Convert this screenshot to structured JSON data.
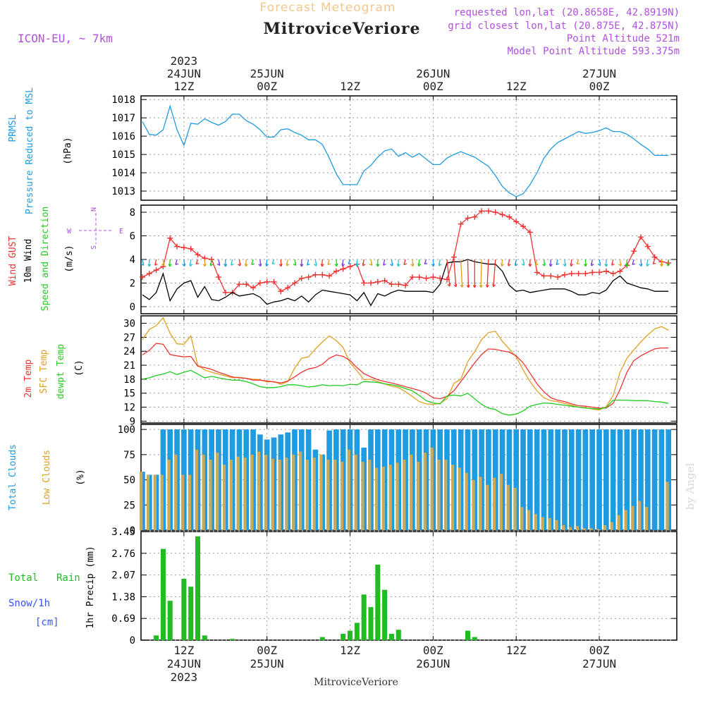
{
  "header": {
    "subtitle": "Forecast Meteogram",
    "location": "MitroviceVeriore",
    "model": "ICON-EU, ~ 7km",
    "requested": "requested lon,lat (20.8658E, 42.8919N)",
    "closest": "grid closest lon,lat (20.875E, 42.875N)",
    "altitude": "Point Altitude 521m",
    "model_altitude": "Model Point Altitude 593.375m",
    "watermark": "by Angel"
  },
  "time_axis": {
    "top_labels": [
      {
        "day": "24JUN",
        "hour": "12Z",
        "year": "2023"
      },
      {
        "day": "25JUN",
        "hour": "00Z"
      },
      {
        "day": "",
        "hour": "12Z"
      },
      {
        "day": "26JUN",
        "hour": "00Z"
      },
      {
        "day": "",
        "hour": "12Z"
      },
      {
        "day": "27JUN",
        "hour": "00Z"
      }
    ],
    "bottom_hours": [
      "12Z",
      "00Z",
      "12Z",
      "00Z",
      "12Z",
      "00Z"
    ],
    "bottom_days": [
      "24JUN",
      "25JUN",
      "26JUN",
      "27JUN"
    ],
    "bottom_year": "2023",
    "bottom_title": "MitroviceVeriore",
    "tick_hours": [
      12,
      24,
      36,
      48,
      60,
      72
    ]
  },
  "panels": {
    "pressure": {
      "label1": "PRMSL",
      "label2": "Pressure Reduced to MSL",
      "unit": "(hPa)"
    },
    "wind": {
      "label_gust": "Wind GUST",
      "label_wind": "10m Wind",
      "label_dir": "Speed and Direction",
      "unit": "(m/s)",
      "compass_n": "N",
      "compass_s": "S",
      "compass_w": "W",
      "compass_e": "E"
    },
    "temp": {
      "label1": "2m Temp",
      "label2": "SFC Temp",
      "label3": "dewpt Temp",
      "unit": "(C)"
    },
    "clouds": {
      "label1": "Total Clouds",
      "label2": "Low Clouds",
      "unit": "(%)"
    },
    "precip": {
      "label1": "Total",
      "label2": "Rain",
      "label3": "Snow/1h",
      "label4": "[cm]",
      "unit": "1hr Precip (mm)"
    }
  },
  "colors": {
    "pressure": "#1f9be0",
    "gust": "#ee3333",
    "wind": "#000000",
    "temp2m": "#ee3333",
    "sfc": "#e0a020",
    "dew": "#22cc22",
    "total_clouds": "#1f9be0",
    "low_clouds": "#c8aa5a",
    "precip": "#22bb22",
    "snow_label": "#3355ee",
    "meta": "#b050e0",
    "forecast_title": "#f0c890"
  },
  "chart_data": [
    {
      "type": "line",
      "title": "PRMSL Pressure Reduced to MSL",
      "ylabel": "(hPa)",
      "ylim": [
        1012.5,
        1018.2
      ],
      "yticks": [
        1013,
        1014,
        1015,
        1016,
        1017,
        1018
      ],
      "x_hours": [
        6,
        7,
        8,
        9,
        10,
        11,
        12,
        13,
        14,
        15,
        16,
        17,
        18,
        19,
        20,
        21,
        22,
        23,
        24,
        25,
        26,
        27,
        28,
        29,
        30,
        31,
        32,
        33,
        34,
        35,
        36,
        37,
        38,
        39,
        40,
        41,
        42,
        43,
        44,
        45,
        46,
        47,
        48,
        49,
        50,
        51,
        52,
        53,
        54,
        55,
        56,
        57,
        58,
        59,
        60,
        61,
        62,
        63,
        64,
        65,
        66,
        67,
        68,
        69,
        70,
        71,
        72,
        73,
        74,
        75,
        76,
        77,
        78,
        79,
        80,
        81,
        82
      ],
      "values": [
        1016.8,
        1016.1,
        1016.05,
        1016.35,
        1017.65,
        1016.35,
        1015.5,
        1016.7,
        1016.65,
        1016.95,
        1016.75,
        1016.6,
        1016.8,
        1017.2,
        1017.2,
        1016.85,
        1016.65,
        1016.35,
        1015.95,
        1015.95,
        1016.35,
        1016.4,
        1016.2,
        1016.05,
        1015.8,
        1015.8,
        1015.55,
        1014.8,
        1013.95,
        1013.35,
        1013.35,
        1013.35,
        1014.1,
        1014.4,
        1014.85,
        1015.2,
        1015.3,
        1014.9,
        1015.1,
        1014.85,
        1015.05,
        1014.75,
        1014.45,
        1014.45,
        1014.8,
        1015.0,
        1015.15,
        1015.0,
        1014.85,
        1014.6,
        1014.35,
        1013.85,
        1013.25,
        1012.9,
        1012.7,
        1012.85,
        1013.35,
        1014.0,
        1014.8,
        1015.3,
        1015.65,
        1015.85,
        1016.05,
        1016.25,
        1016.15,
        1016.2,
        1016.3,
        1016.45,
        1016.25,
        1016.25,
        1016.1,
        1015.85,
        1015.55,
        1015.3,
        1014.95,
        1014.95,
        1014.95
      ]
    },
    {
      "type": "line",
      "title": "Wind GUST / 10m Wind Speed and Direction",
      "ylabel": "(m/s)",
      "ylim": [
        -0.6,
        8.6
      ],
      "yticks": [
        0,
        2,
        4,
        6,
        8
      ],
      "x_hours": [
        6,
        7,
        8,
        9,
        10,
        11,
        12,
        13,
        14,
        15,
        16,
        17,
        18,
        19,
        20,
        21,
        22,
        23,
        24,
        25,
        26,
        27,
        28,
        29,
        30,
        31,
        32,
        33,
        34,
        35,
        36,
        37,
        38,
        39,
        40,
        41,
        42,
        43,
        44,
        45,
        46,
        47,
        48,
        49,
        50,
        51,
        52,
        53,
        54,
        55,
        56,
        57,
        58,
        59,
        60,
        61,
        62,
        63,
        64,
        65,
        66,
        67,
        68,
        69,
        70,
        71,
        72,
        73,
        74,
        75,
        76,
        77,
        78,
        79,
        80,
        81,
        82
      ],
      "series": [
        {
          "name": "Wind GUST",
          "values": [
            2.5,
            2.8,
            3.1,
            3.4,
            5.8,
            5.1,
            5.0,
            4.9,
            4.4,
            4.1,
            4.0,
            2.5,
            1.2,
            1.2,
            1.9,
            1.9,
            1.6,
            2.0,
            2.1,
            2.1,
            1.3,
            1.6,
            2.0,
            2.4,
            2.5,
            2.7,
            2.7,
            2.6,
            3.0,
            3.2,
            3.4,
            3.6,
            2.0,
            2.0,
            2.1,
            2.2,
            1.9,
            1.9,
            1.8,
            2.5,
            2.5,
            2.4,
            2.5,
            2.4,
            2.3,
            4.2,
            7.0,
            7.5,
            7.6,
            8.1,
            8.1,
            8.0,
            7.8,
            7.6,
            7.2,
            6.8,
            6.3,
            2.9,
            2.6,
            2.6,
            2.5,
            2.7,
            2.8,
            2.8,
            2.8,
            2.9,
            2.9,
            3.0,
            2.8,
            3.0,
            3.5,
            4.7,
            5.9,
            5.1,
            4.2,
            3.8,
            3.7
          ]
        },
        {
          "name": "10m Wind",
          "values": [
            1.0,
            0.6,
            1.2,
            2.8,
            0.5,
            1.5,
            2.0,
            2.2,
            0.8,
            1.7,
            0.6,
            0.5,
            0.8,
            1.2,
            0.9,
            1.0,
            1.1,
            0.8,
            0.2,
            0.4,
            0.5,
            0.7,
            0.5,
            0.9,
            0.4,
            1.0,
            1.4,
            1.3,
            1.2,
            1.1,
            1.0,
            0.5,
            1.2,
            0.1,
            1.1,
            0.9,
            1.2,
            1.4,
            1.3,
            1.3,
            1.3,
            1.3,
            1.2,
            1.9,
            3.7,
            3.8,
            3.8,
            4.0,
            3.8,
            3.7,
            3.6,
            3.6,
            3.0,
            1.8,
            1.3,
            1.4,
            1.2,
            1.3,
            1.4,
            1.5,
            1.5,
            1.5,
            1.3,
            1.0,
            1.0,
            1.2,
            1.1,
            1.4,
            2.2,
            2.6,
            2.0,
            1.8,
            1.6,
            1.5,
            1.3,
            1.3,
            1.3
          ]
        }
      ]
    },
    {
      "type": "line",
      "title": "2m Temp / SFC Temp / dewpt Temp",
      "ylabel": "(C)",
      "ylim": [
        8.6,
        31.6
      ],
      "yticks": [
        9,
        12,
        15,
        18,
        21,
        24,
        27,
        30
      ],
      "x_hours": [
        6,
        7,
        8,
        9,
        10,
        11,
        12,
        13,
        14,
        15,
        16,
        17,
        18,
        19,
        20,
        21,
        22,
        23,
        24,
        25,
        26,
        27,
        28,
        29,
        30,
        31,
        32,
        33,
        34,
        35,
        36,
        37,
        38,
        39,
        40,
        41,
        42,
        43,
        44,
        45,
        46,
        47,
        48,
        49,
        50,
        51,
        52,
        53,
        54,
        55,
        56,
        57,
        58,
        59,
        60,
        61,
        62,
        63,
        64,
        65,
        66,
        67,
        68,
        69,
        70,
        71,
        72,
        73,
        74,
        75,
        76,
        77,
        78,
        79,
        80,
        81,
        82
      ],
      "series": [
        {
          "name": "2m Temp",
          "values": [
            23.2,
            24.2,
            25.7,
            25.5,
            23.3,
            23.0,
            22.8,
            22.9,
            20.8,
            20.5,
            20.1,
            19.5,
            19.0,
            18.5,
            18.3,
            18.2,
            17.8,
            17.8,
            17.6,
            17.4,
            17.2,
            17.6,
            18.5,
            19.5,
            20.2,
            20.5,
            21.2,
            22.5,
            23.2,
            22.9,
            22.0,
            20.5,
            19.2,
            18.5,
            17.9,
            17.5,
            17.2,
            16.8,
            16.4,
            16.0,
            15.6,
            15.0,
            14.0,
            13.8,
            14.3,
            15.5,
            17.5,
            19.5,
            21.5,
            23.3,
            24.5,
            24.4,
            24.1,
            23.8,
            23.0,
            21.5,
            19.3,
            17.0,
            15.3,
            14.0,
            13.5,
            13.2,
            12.7,
            12.3,
            12.2,
            12.0,
            11.8,
            11.8,
            12.8,
            15.8,
            19.5,
            22.0,
            23.0,
            23.8,
            24.5,
            24.7,
            24.7
          ]
        },
        {
          "name": "SFC Temp",
          "values": [
            26.5,
            28.7,
            29.5,
            31.2,
            27.9,
            25.6,
            25.5,
            27.3,
            21.0,
            20.0,
            19.5,
            19.1,
            18.7,
            18.3,
            18.4,
            18.2,
            18.0,
            17.9,
            17.4,
            17.5,
            16.9,
            17.5,
            20.4,
            22.5,
            22.8,
            24.5,
            26.0,
            27.3,
            26.3,
            24.8,
            21.5,
            19.8,
            17.9,
            18.0,
            17.5,
            17.0,
            16.5,
            16.2,
            15.3,
            14.3,
            13.2,
            12.7,
            12.6,
            12.8,
            13.8,
            17.1,
            18.0,
            21.8,
            23.9,
            26.5,
            28.0,
            28.3,
            26.1,
            24.5,
            22.8,
            20.0,
            17.5,
            15.5,
            14.0,
            13.4,
            13.2,
            12.8,
            12.4,
            12.0,
            11.9,
            11.6,
            11.4,
            12.1,
            14.5,
            19.5,
            22.5,
            24.3,
            26.0,
            27.5,
            28.8,
            29.3,
            28.5
          ]
        },
        {
          "name": "dewpt Temp",
          "values": [
            18.0,
            18.3,
            18.8,
            19.1,
            19.6,
            19.0,
            19.5,
            19.9,
            19.1,
            18.3,
            18.6,
            18.3,
            18.0,
            17.8,
            17.8,
            17.5,
            17.0,
            16.4,
            16.2,
            16.2,
            16.4,
            16.8,
            16.8,
            16.6,
            16.3,
            16.5,
            16.8,
            16.6,
            16.7,
            16.6,
            16.9,
            16.8,
            17.5,
            17.4,
            17.3,
            17.0,
            16.8,
            16.5,
            16.0,
            15.5,
            14.5,
            13.4,
            12.9,
            12.7,
            14.4,
            14.6,
            14.4,
            15.0,
            13.8,
            12.6,
            11.8,
            11.5,
            10.6,
            10.3,
            10.5,
            11.2,
            12.2,
            12.6,
            12.9,
            12.8,
            12.6,
            12.4,
            12.2,
            12.0,
            11.8,
            11.7,
            11.6,
            11.9,
            13.5,
            13.5,
            13.5,
            13.4,
            13.4,
            13.4,
            13.2,
            13.1,
            12.8
          ]
        }
      ]
    },
    {
      "type": "bar",
      "title": "Total Clouds / Low Clouds",
      "ylabel": "(%)",
      "ylim": [
        0,
        105
      ],
      "yticks": [
        0,
        25,
        50,
        75,
        100
      ],
      "x_hours": [
        6,
        7,
        8,
        9,
        10,
        11,
        12,
        13,
        14,
        15,
        16,
        17,
        18,
        19,
        20,
        21,
        22,
        23,
        24,
        25,
        26,
        27,
        28,
        29,
        30,
        31,
        32,
        33,
        34,
        35,
        36,
        37,
        38,
        39,
        40,
        41,
        42,
        43,
        44,
        45,
        46,
        47,
        48,
        49,
        50,
        51,
        52,
        53,
        54,
        55,
        56,
        57,
        58,
        59,
        60,
        61,
        62,
        63,
        64,
        65,
        66,
        67,
        68,
        69,
        70,
        71,
        72,
        73,
        74,
        75,
        76,
        77,
        78,
        79,
        80,
        81,
        82
      ],
      "series": [
        {
          "name": "Total Clouds",
          "values": [
            58,
            55,
            55,
            100,
            100,
            100,
            100,
            100,
            100,
            100,
            100,
            100,
            100,
            100,
            100,
            100,
            100,
            95,
            90,
            92,
            95,
            97,
            100,
            100,
            100,
            80,
            75,
            99,
            100,
            100,
            100,
            100,
            82,
            100,
            100,
            100,
            100,
            100,
            100,
            100,
            100,
            100,
            100,
            100,
            100,
            100,
            100,
            100,
            100,
            100,
            100,
            100,
            100,
            100,
            100,
            100,
            100,
            100,
            100,
            100,
            100,
            100,
            100,
            100,
            100,
            100,
            100,
            100,
            100,
            100,
            100,
            100,
            100,
            100,
            100,
            100,
            100
          ]
        },
        {
          "name": "Low Clouds",
          "values": [
            58,
            55,
            55,
            55,
            70,
            75,
            55,
            55,
            80,
            75,
            70,
            77,
            65,
            70,
            73,
            72,
            75,
            78,
            75,
            71,
            70,
            72,
            75,
            78,
            70,
            72,
            75,
            70,
            70,
            68,
            80,
            75,
            68,
            70,
            62,
            63,
            65,
            67,
            70,
            75,
            68,
            77,
            82,
            70,
            70,
            65,
            62,
            57,
            50,
            53,
            45,
            52,
            56,
            45,
            42,
            23,
            20,
            16,
            13,
            12,
            10,
            5,
            3,
            4,
            2,
            2,
            1,
            5,
            8,
            15,
            20,
            24,
            29,
            23,
            0,
            0,
            48
          ]
        }
      ]
    },
    {
      "type": "bar",
      "title": "Total Rain Snow/1h [cm]",
      "ylabel": "1hr Precip (mm)",
      "ylim": [
        0,
        3.45
      ],
      "yticks": [
        0,
        0.69,
        1.38,
        2.07,
        2.76,
        3.45
      ],
      "x_hours": [
        8,
        9,
        10,
        11,
        12,
        13,
        14,
        15,
        19,
        32,
        35,
        36,
        37,
        38,
        39,
        40,
        41,
        42,
        43,
        44,
        53,
        54
      ],
      "values": [
        0.15,
        2.9,
        1.25,
        0.0,
        1.95,
        1.7,
        3.3,
        0.15,
        0.04,
        0.1,
        0.2,
        0.3,
        0.55,
        1.45,
        1.05,
        2.4,
        1.6,
        0.2,
        0.33,
        0.0,
        0.3,
        0.1
      ]
    }
  ]
}
